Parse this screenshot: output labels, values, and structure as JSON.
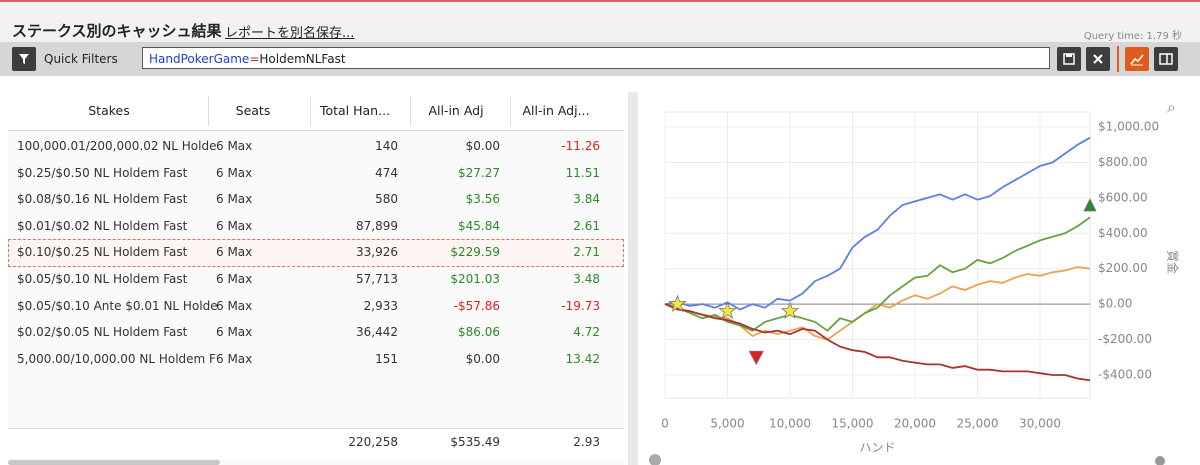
{
  "header": {
    "title": "ステークス別のキャッシュ結果",
    "save_link": "レポートを別名保存...",
    "query_time": "Query time: 1.79 秒"
  },
  "filter": {
    "label": "Quick Filters",
    "field": "HandPokerGame",
    "operator": "=",
    "value": "HoldemNLFast"
  },
  "table": {
    "columns": [
      "Stakes",
      "Seats",
      "Total Han...",
      "All-in Adj",
      "All-in Adj..."
    ],
    "rows": [
      [
        "100,000.01/200,000.02 NL Holde",
        "6 Max",
        "140",
        "$0.00",
        "-11.26"
      ],
      [
        "$0.25/$0.50 NL Holdem Fast",
        "6 Max",
        "474",
        "$27.27",
        "11.51"
      ],
      [
        "$0.08/$0.16 NL Holdem Fast",
        "6 Max",
        "580",
        "$3.56",
        "3.84"
      ],
      [
        "$0.01/$0.02 NL Holdem Fast",
        "6 Max",
        "87,899",
        "$45.84",
        "2.61"
      ],
      [
        "$0.10/$0.25 NL Holdem Fast",
        "6 Max",
        "33,926",
        "$229.59",
        "2.71"
      ],
      [
        "$0.05/$0.10 NL Holdem Fast",
        "6 Max",
        "57,713",
        "$201.03",
        "3.48"
      ],
      [
        "$0.05/$0.10 Ante $0.01 NL Holde",
        "6 Max",
        "2,933",
        "-$57.86",
        "-19.73"
      ],
      [
        "$0.02/$0.05 NL Holdem Fast",
        "6 Max",
        "36,442",
        "$86.06",
        "4.72"
      ],
      [
        "5,000.00/10,000.00 NL Holdem F",
        "6 Max",
        "151",
        "$0.00",
        "13.42"
      ]
    ],
    "selected_row": 4,
    "totals": [
      "220,258",
      "$535.49",
      "2.93"
    ]
  },
  "chart_data": {
    "type": "line",
    "x_label": "ハンド",
    "y_label": "賞金",
    "x": [
      0,
      1000,
      2000,
      3000,
      4000,
      5000,
      6000,
      7000,
      8000,
      9000,
      10000,
      11000,
      12000,
      13000,
      14000,
      15000,
      16000,
      17000,
      18000,
      19000,
      20000,
      21000,
      22000,
      23000,
      24000,
      25000,
      26000,
      27000,
      28000,
      29000,
      30000,
      31000,
      32000,
      33000,
      34000
    ],
    "series": [
      {
        "color": "#5b7fe8",
        "values": [
          0,
          10,
          -10,
          0,
          -20,
          10,
          -30,
          0,
          -20,
          30,
          20,
          60,
          130,
          160,
          200,
          320,
          380,
          420,
          500,
          560,
          580,
          600,
          620,
          590,
          620,
          590,
          610,
          660,
          700,
          740,
          780,
          800,
          850,
          900,
          940
        ]
      },
      {
        "color": "#f0a050",
        "values": [
          0,
          -20,
          -40,
          -60,
          -70,
          -80,
          -120,
          -180,
          -150,
          -170,
          -150,
          -130,
          -180,
          -200,
          -150,
          -100,
          -50,
          0,
          -20,
          20,
          50,
          30,
          60,
          100,
          80,
          110,
          130,
          120,
          150,
          170,
          160,
          180,
          190,
          210,
          200
        ]
      },
      {
        "color": "#6aa040",
        "values": [
          0,
          -20,
          -50,
          -80,
          -60,
          -100,
          -120,
          -150,
          -100,
          -80,
          -60,
          -80,
          -100,
          -150,
          -80,
          -100,
          -50,
          -20,
          50,
          100,
          150,
          160,
          220,
          180,
          200,
          250,
          230,
          260,
          300,
          330,
          360,
          380,
          400,
          440,
          490
        ]
      },
      {
        "color": "#a83232",
        "values": [
          0,
          -30,
          -40,
          -60,
          -80,
          -90,
          -110,
          -140,
          -160,
          -150,
          -170,
          -140,
          -150,
          -200,
          -240,
          -260,
          -270,
          -300,
          -300,
          -320,
          -330,
          -340,
          -340,
          -360,
          -350,
          -370,
          -370,
          -380,
          -380,
          -380,
          -390,
          -400,
          -400,
          -420,
          -430
        ]
      }
    ],
    "markers": [
      {
        "x": 1000,
        "y": 0,
        "shape": "star",
        "color": "#f5e63a"
      },
      {
        "x": 5000,
        "y": -40,
        "shape": "star",
        "color": "#f5e63a"
      },
      {
        "x": 10000,
        "y": -40,
        "shape": "star",
        "color": "#f5e63a"
      },
      {
        "x": 7300,
        "y": -300,
        "shape": "triangle-down",
        "color": "#e02020"
      },
      {
        "x": 34000,
        "y": 560,
        "shape": "triangle-up",
        "color": "#2a8a2a"
      }
    ],
    "xlim": [
      0,
      34000
    ],
    "xticks": [
      0,
      {
        "value": 5000,
        "label": "5,000"
      },
      {
        "value": 10000,
        "label": "10,000"
      },
      {
        "value": 15000,
        "label": "15,000"
      },
      {
        "value": 20000,
        "label": "20,000"
      },
      {
        "value": 25000,
        "label": "25,000"
      },
      {
        "value": 30000,
        "label": "30,000"
      }
    ],
    "ylim": [
      -530,
      1085
    ],
    "yticks": [
      {
        "value": -400,
        "label": "-$400.00"
      },
      {
        "value": -200,
        "label": "-$200.00"
      },
      {
        "value": 0,
        "label": "$0.00"
      },
      {
        "value": 200,
        "label": "$200.00"
      },
      {
        "value": 400,
        "label": "$400.00"
      },
      {
        "value": 600,
        "label": "$600.00"
      },
      {
        "value": 800,
        "label": "$800.00"
      },
      {
        "value": 1000,
        "label": "$1,000.00"
      }
    ],
    "grid": true,
    "zero_line": true
  }
}
